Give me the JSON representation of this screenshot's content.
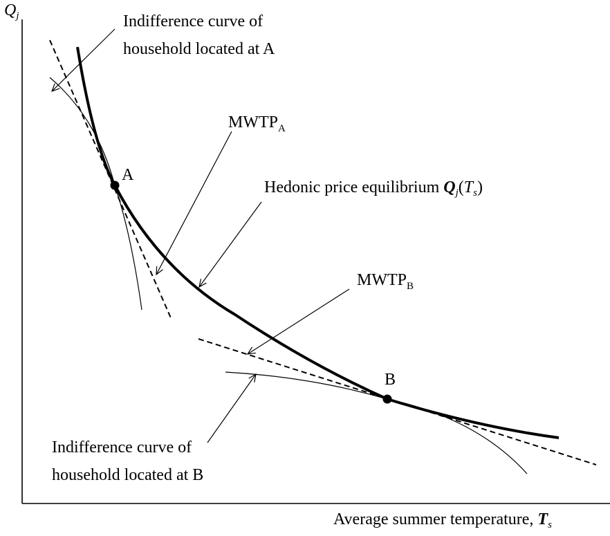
{
  "y_axis_label": {
    "main": "Q",
    "sub": "j"
  },
  "x_axis_label": {
    "text": "Average summer temperature, ",
    "var": "T",
    "sub": "s"
  },
  "indifference_a": {
    "line1": "Indifference curve of",
    "line2": "household located at A"
  },
  "mwtp_a": {
    "main": "MWTP",
    "sub": "A"
  },
  "point_a": "A",
  "hedonic": {
    "text": "Hedonic price equilibrium ",
    "var": "Q",
    "var_sub": "j",
    "open": "(",
    "arg": "T",
    "arg_sub": "s",
    "close": ")"
  },
  "mwtp_b": {
    "main": "MWTP",
    "sub": "B"
  },
  "point_b": "B",
  "indifference_b": {
    "line1": "Indifference curve of",
    "line2": "household located at B"
  }
}
